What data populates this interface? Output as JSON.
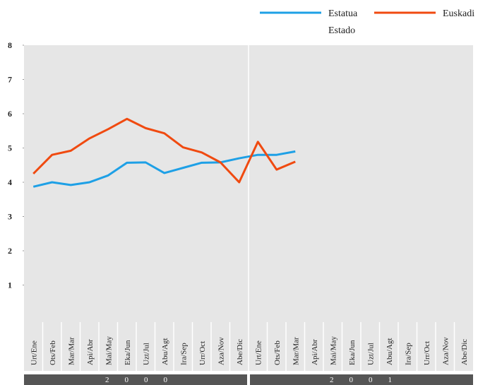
{
  "chart_data": {
    "type": "line",
    "categories": [
      "Urt/Ene",
      "Ots/Feb",
      "Mar/Mar",
      "Api/Abr",
      "Mai/May",
      "Eka/Jun",
      "Uzt/Jul",
      "Abu/Agt",
      "Ira/Sep",
      "Urr/Oct",
      "Aza/Nov",
      "Abe/Dic",
      "Urt/Ene",
      "Ots/Feb",
      "Mar/Mar",
      "Api/Abr",
      "Mai/May",
      "Eka/Jun",
      "Uzt/Jul",
      "Abu/Agt",
      "Ira/Sep",
      "Urr/Oct",
      "Aza/Nov",
      "Abe/Dic"
    ],
    "groups": [
      {
        "label": "2000",
        "size": 12
      },
      {
        "label": "2001",
        "size": 12
      }
    ],
    "series": [
      {
        "name": "Estatua Estado",
        "color": "#1ea0e6",
        "values": [
          3.87,
          4.0,
          3.92,
          4.0,
          4.2,
          4.57,
          4.58,
          4.27,
          4.42,
          4.57,
          4.58,
          4.7,
          4.8,
          4.8,
          4.9,
          null,
          null,
          null,
          null,
          null,
          null,
          null,
          null,
          null
        ]
      },
      {
        "name": "Euskadi",
        "color": "#f04a10",
        "values": [
          4.25,
          4.8,
          4.92,
          5.28,
          5.55,
          5.85,
          5.58,
          5.43,
          5.02,
          4.87,
          4.58,
          4.0,
          5.18,
          4.37,
          4.6,
          null,
          null,
          null,
          null,
          null,
          null,
          null,
          null,
          null
        ]
      }
    ],
    "ylim": [
      0,
      8
    ],
    "yticks": [
      1,
      2,
      3,
      4,
      5,
      6,
      7,
      8
    ],
    "grid": false
  }
}
